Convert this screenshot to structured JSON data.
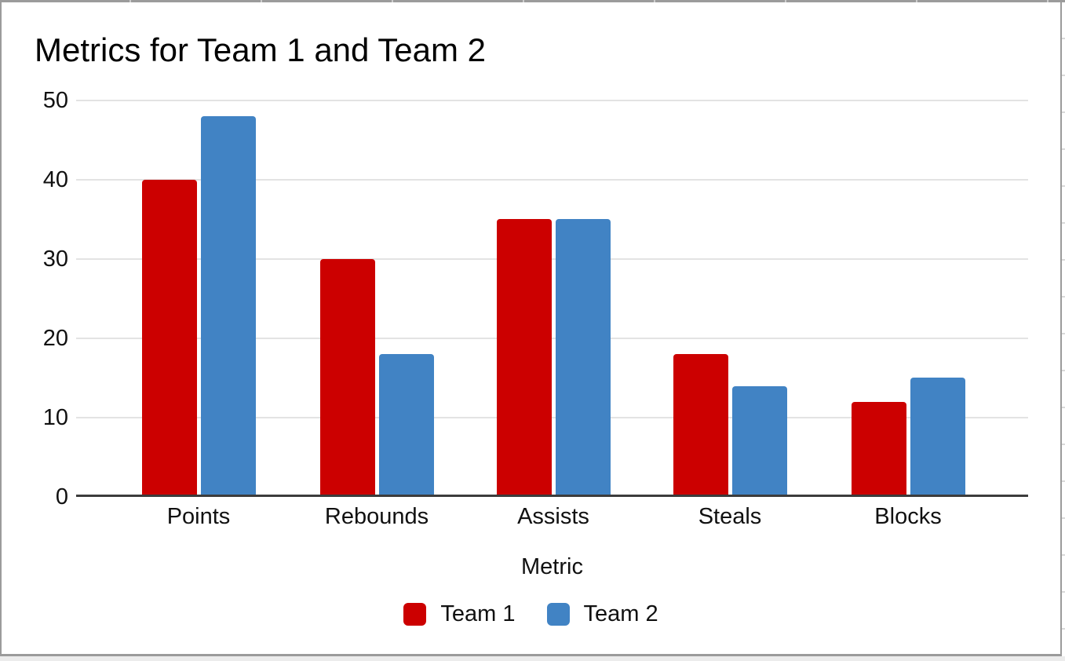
{
  "chart_data": {
    "type": "bar",
    "title": "Metrics for Team 1 and Team 2",
    "xlabel": "Metric",
    "ylabel": "",
    "categories": [
      "Points",
      "Rebounds",
      "Assists",
      "Steals",
      "Blocks"
    ],
    "series": [
      {
        "name": "Team 1",
        "color": "#CC0000",
        "values": [
          40,
          30,
          35,
          18,
          12
        ]
      },
      {
        "name": "Team 2",
        "color": "#4183C4",
        "values": [
          48,
          18,
          35,
          14,
          15
        ]
      }
    ],
    "ylim": [
      0,
      50
    ],
    "yticks": [
      0,
      10,
      20,
      30,
      40,
      50
    ],
    "grid": true,
    "legend_position": "bottom",
    "colors": {
      "gridline": "#e3e3e3",
      "axis_line": "#3c3c3c",
      "chart_border": "#9b9b9b",
      "background": "#ffffff"
    }
  }
}
